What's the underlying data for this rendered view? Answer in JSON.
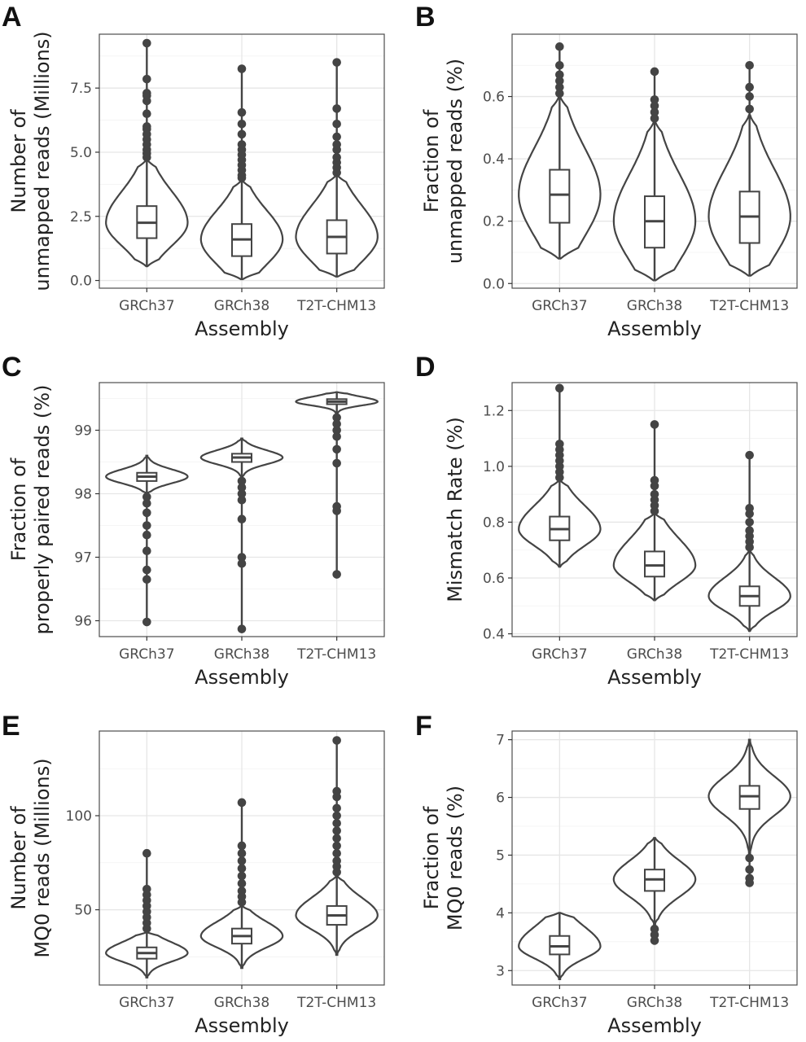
{
  "chart_data": [
    {
      "panel": "A",
      "type": "violin",
      "categories": [
        "GRCh37",
        "GRCh38",
        "T2T-CHM13"
      ],
      "xlabel": "Assembly",
      "ylabel": "Number of\nunmapped reads (Millions)",
      "ylim": [
        -0.3,
        9.6
      ],
      "yticks": [
        0.0,
        2.5,
        5.0,
        7.5
      ],
      "ytick_labels": [
        "0.0",
        "2.5",
        "5.0",
        "7.5"
      ],
      "grid": true,
      "series": [
        {
          "category": "GRCh37",
          "min": 0.55,
          "q1": 1.65,
          "median": 2.25,
          "q3": 2.9,
          "max": 4.7,
          "outliers": [
            4.8,
            4.95,
            5.1,
            5.3,
            5.5,
            5.7,
            5.9,
            6.0,
            6.5,
            7.0,
            7.2,
            7.3,
            7.85,
            9.25
          ]
        },
        {
          "category": "GRCh38",
          "min": 0.05,
          "q1": 0.95,
          "median": 1.6,
          "q3": 2.2,
          "max": 3.9,
          "outliers": [
            4.0,
            4.1,
            4.3,
            4.5,
            4.7,
            4.9,
            5.1,
            5.3,
            5.7,
            6.1,
            6.55,
            8.25
          ]
        },
        {
          "category": "T2T-CHM13",
          "min": 0.15,
          "q1": 1.05,
          "median": 1.7,
          "q3": 2.35,
          "max": 4.1,
          "outliers": [
            4.2,
            4.4,
            4.6,
            4.8,
            5.1,
            5.3,
            5.6,
            6.1,
            6.7,
            8.5
          ]
        }
      ]
    },
    {
      "panel": "B",
      "type": "violin",
      "categories": [
        "GRCh37",
        "GRCh38",
        "T2T-CHM13"
      ],
      "xlabel": "Assembly",
      "ylabel": "Fraction of\nunmapped reads (%)",
      "ylim": [
        -0.015,
        0.8
      ],
      "yticks": [
        0.0,
        0.2,
        0.4,
        0.6
      ],
      "ytick_labels": [
        "0.0",
        "0.2",
        "0.4",
        "0.6"
      ],
      "grid": true,
      "series": [
        {
          "category": "GRCh37",
          "min": 0.08,
          "q1": 0.195,
          "median": 0.285,
          "q3": 0.365,
          "max": 0.6,
          "outliers": [
            0.61,
            0.63,
            0.65,
            0.67,
            0.7,
            0.76
          ]
        },
        {
          "category": "GRCh38",
          "min": 0.01,
          "q1": 0.115,
          "median": 0.2,
          "q3": 0.28,
          "max": 0.52,
          "outliers": [
            0.53,
            0.55,
            0.57,
            0.59,
            0.68
          ]
        },
        {
          "category": "T2T-CHM13",
          "min": 0.025,
          "q1": 0.13,
          "median": 0.215,
          "q3": 0.295,
          "max": 0.54,
          "outliers": [
            0.56,
            0.6,
            0.63,
            0.7
          ]
        }
      ]
    },
    {
      "panel": "C",
      "type": "violin",
      "categories": [
        "GRCh37",
        "GRCh38",
        "T2T-CHM13"
      ],
      "xlabel": "Assembly",
      "ylabel": "Fraction of\nproperly paired reads (%)",
      "ylim": [
        95.75,
        99.75
      ],
      "yticks": [
        96,
        97,
        98,
        99
      ],
      "ytick_labels": [
        "96",
        "97",
        "98",
        "99"
      ],
      "grid": true,
      "series": [
        {
          "category": "GRCh37",
          "min": 98.0,
          "q1": 98.2,
          "median": 98.27,
          "q3": 98.33,
          "max": 98.6,
          "outliers": [
            97.95,
            97.85,
            97.7,
            97.5,
            97.35,
            97.1,
            96.8,
            96.65,
            95.98
          ]
        },
        {
          "category": "GRCh38",
          "min": 98.25,
          "q1": 98.5,
          "median": 98.57,
          "q3": 98.63,
          "max": 98.87,
          "outliers": [
            98.2,
            98.1,
            98.0,
            97.9,
            97.6,
            97.0,
            96.9,
            95.87
          ]
        },
        {
          "category": "T2T-CHM13",
          "min": 99.25,
          "q1": 99.41,
          "median": 99.45,
          "q3": 99.49,
          "max": 99.6,
          "outliers": [
            99.2,
            99.1,
            99.0,
            98.9,
            98.7,
            98.48,
            97.8,
            97.73,
            96.73
          ]
        }
      ]
    },
    {
      "panel": "D",
      "type": "violin",
      "categories": [
        "GRCh37",
        "GRCh38",
        "T2T-CHM13"
      ],
      "xlabel": "Assembly",
      "ylabel": "Mismatch Rate (%)",
      "ylim": [
        0.39,
        1.3
      ],
      "yticks": [
        0.4,
        0.6,
        0.8,
        1.0,
        1.2
      ],
      "ytick_labels": [
        "0.4",
        "0.6",
        "0.8",
        "1.0",
        "1.2"
      ],
      "grid": true,
      "series": [
        {
          "category": "GRCh37",
          "min": 0.64,
          "q1": 0.735,
          "median": 0.775,
          "q3": 0.82,
          "max": 0.95,
          "outliers": [
            0.96,
            0.98,
            1.0,
            1.02,
            1.04,
            1.06,
            1.08,
            1.28
          ]
        },
        {
          "category": "GRCh38",
          "min": 0.52,
          "q1": 0.605,
          "median": 0.645,
          "q3": 0.695,
          "max": 0.83,
          "outliers": [
            0.84,
            0.86,
            0.88,
            0.9,
            0.93,
            0.95,
            1.15
          ]
        },
        {
          "category": "T2T-CHM13",
          "min": 0.41,
          "q1": 0.5,
          "median": 0.535,
          "q3": 0.57,
          "max": 0.7,
          "outliers": [
            0.71,
            0.73,
            0.75,
            0.77,
            0.8,
            0.83,
            0.85,
            1.04
          ]
        }
      ]
    },
    {
      "panel": "E",
      "type": "violin",
      "categories": [
        "GRCh37",
        "GRCh38",
        "T2T-CHM13"
      ],
      "xlabel": "Assembly",
      "ylabel": "Number of\nMQ0 reads (Millions)",
      "ylim": [
        10,
        145
      ],
      "yticks": [
        50,
        100
      ],
      "ytick_labels": [
        "50",
        "100"
      ],
      "grid": true,
      "series": [
        {
          "category": "GRCh37",
          "min": 14,
          "q1": 24,
          "median": 27,
          "q3": 30,
          "max": 38,
          "outliers": [
            40,
            43,
            46,
            49,
            52,
            55,
            58,
            61,
            80
          ]
        },
        {
          "category": "GRCh38",
          "min": 19,
          "q1": 32,
          "median": 36,
          "q3": 40,
          "max": 52,
          "outliers": [
            54,
            57,
            60,
            64,
            68,
            72,
            76,
            80,
            84,
            107
          ]
        },
        {
          "category": "T2T-CHM13",
          "min": 26,
          "q1": 42,
          "median": 47,
          "q3": 52,
          "max": 68,
          "outliers": [
            70,
            73,
            76,
            80,
            84,
            88,
            92,
            96,
            100,
            104,
            110,
            113,
            140
          ]
        }
      ]
    },
    {
      "panel": "F",
      "type": "violin",
      "categories": [
        "GRCh37",
        "GRCh38",
        "T2T-CHM13"
      ],
      "xlabel": "Assembly",
      "ylabel": "Fraction of\nMQ0 reads (%)",
      "ylim": [
        2.75,
        7.15
      ],
      "yticks": [
        3,
        4,
        5,
        6,
        7
      ],
      "ytick_labels": [
        "3",
        "4",
        "5",
        "6",
        "7"
      ],
      "grid": true,
      "series": [
        {
          "category": "GRCh37",
          "min": 2.85,
          "q1": 3.28,
          "median": 3.42,
          "q3": 3.6,
          "max": 4.0,
          "outliers": []
        },
        {
          "category": "GRCh38",
          "min": 3.8,
          "q1": 4.38,
          "median": 4.58,
          "q3": 4.75,
          "max": 5.3,
          "outliers": [
            3.52,
            3.62,
            3.72
          ]
        },
        {
          "category": "T2T-CHM13",
          "min": 5.0,
          "q1": 5.8,
          "median": 6.02,
          "q3": 6.2,
          "max": 7.0,
          "outliers": [
            4.52,
            4.6,
            4.75,
            4.95
          ]
        }
      ]
    }
  ]
}
